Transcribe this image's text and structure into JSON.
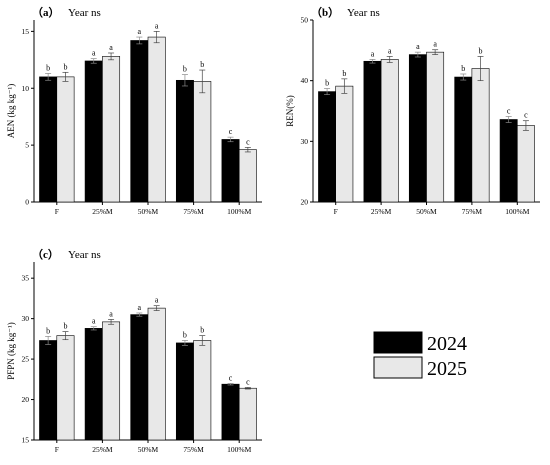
{
  "colors": {
    "series_2024": "#000000",
    "series_2025": "#e8e8e8",
    "axis": "#000000",
    "error_bar": "#444444"
  },
  "legend": {
    "items": [
      "2024",
      "2025"
    ]
  },
  "chart_data": [
    {
      "type": "bar",
      "panel_label": "（a）",
      "annotation": "Year ns",
      "ylabel": "AEN (kg kg⁻¹)",
      "xlabel": "",
      "ylim": [
        0,
        16
      ],
      "yticks": [
        0,
        5,
        10,
        15
      ],
      "categories": [
        "F",
        "25%M",
        "50%M",
        "75%M",
        "100%M"
      ],
      "series": [
        {
          "name": "2024",
          "values": [
            11.0,
            12.4,
            14.2,
            10.7,
            5.5
          ],
          "errors": [
            0.3,
            0.2,
            0.3,
            0.5,
            0.2
          ],
          "letters": [
            "b",
            "a",
            "a",
            "b",
            "c"
          ]
        },
        {
          "name": "2025",
          "values": [
            11.0,
            12.8,
            14.5,
            10.6,
            4.6
          ],
          "errors": [
            0.4,
            0.3,
            0.5,
            1.0,
            0.2
          ],
          "letters": [
            "b",
            "a",
            "a",
            "b",
            "c"
          ]
        }
      ]
    },
    {
      "type": "bar",
      "panel_label": "（b）",
      "annotation": "Year ns",
      "ylabel": "REN(%)",
      "xlabel": "",
      "ylim": [
        20,
        50
      ],
      "yticks": [
        20,
        30,
        40,
        50
      ],
      "categories": [
        "F",
        "25%M",
        "50%M",
        "75%M",
        "100%M"
      ],
      "series": [
        {
          "name": "2024",
          "values": [
            38.2,
            43.2,
            44.3,
            40.6,
            33.6
          ],
          "errors": [
            0.5,
            0.3,
            0.4,
            0.5,
            0.5
          ],
          "letters": [
            "b",
            "a",
            "a",
            "b",
            "c"
          ]
        },
        {
          "name": "2025",
          "values": [
            39.1,
            43.5,
            44.7,
            42.0,
            32.6
          ],
          "errors": [
            1.2,
            0.5,
            0.4,
            2.0,
            0.8
          ],
          "letters": [
            "b",
            "a",
            "a",
            "b",
            "c"
          ]
        }
      ]
    },
    {
      "type": "bar",
      "panel_label": "（c）",
      "annotation": "Year ns",
      "ylabel": "PFPN (kg kg⁻¹)",
      "xlabel": "",
      "ylim": [
        15,
        37
      ],
      "yticks": [
        15,
        20,
        25,
        30,
        35
      ],
      "categories": [
        "F",
        "25%M",
        "50%M",
        "75%M",
        "100%M"
      ],
      "series": [
        {
          "name": "2024",
          "values": [
            27.3,
            28.8,
            30.5,
            27.0,
            21.9
          ],
          "errors": [
            0.5,
            0.2,
            0.2,
            0.3,
            0.1
          ],
          "letters": [
            "b",
            "a",
            "a",
            "b",
            "c"
          ]
        },
        {
          "name": "2025",
          "values": [
            27.9,
            29.6,
            31.3,
            27.3,
            21.4
          ],
          "errors": [
            0.5,
            0.3,
            0.3,
            0.6,
            0.1
          ],
          "letters": [
            "b",
            "a",
            "a",
            "b",
            "c"
          ]
        }
      ]
    }
  ]
}
